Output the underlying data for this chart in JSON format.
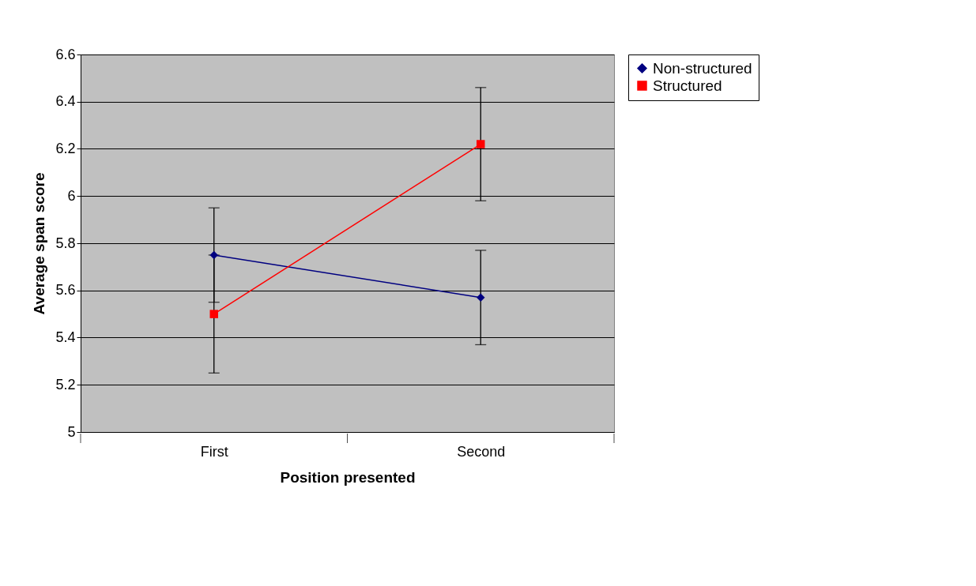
{
  "chart_data": {
    "type": "line",
    "xlabel": "Position presented",
    "ylabel": "Average span score",
    "categories": [
      "First",
      "Second"
    ],
    "series": [
      {
        "name": "Non-structured",
        "color": "#000080",
        "marker": "diamond",
        "values": [
          5.75,
          5.57
        ],
        "errors": [
          0.2,
          0.2
        ]
      },
      {
        "name": "Structured",
        "color": "#ff0000",
        "marker": "square",
        "values": [
          5.5,
          6.22
        ],
        "errors": [
          0.25,
          0.24
        ]
      }
    ],
    "ylim": [
      5,
      6.6
    ],
    "yticks": [
      5,
      5.2,
      5.4,
      5.6,
      5.8,
      6,
      6.2,
      6.4,
      6.6
    ],
    "grid": "y",
    "legend": "right"
  }
}
